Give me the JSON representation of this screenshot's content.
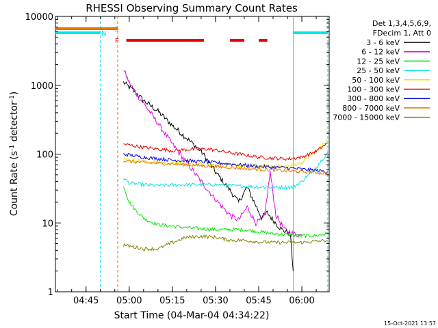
{
  "chart_data": {
    "type": "line",
    "title": "RHESSI Observing Summary Count Rates",
    "xlabel": "Start Time (04-Mar-04 04:34:22)",
    "ylabel_main": "Count Rate (s",
    "ylabel_sup1": "-1",
    "ylabel_mid": " detector",
    "ylabel_sup2": "-1",
    "ylabel_end": ")",
    "y_scale": "log",
    "ylim": [
      1,
      10000
    ],
    "xlim": [
      "04:34:22",
      "06:09:30"
    ],
    "x_ticks": [
      "04:45",
      "05:00",
      "05:15",
      "05:30",
      "05:45",
      "06:00"
    ],
    "y_ticks": [
      "1",
      "10",
      "100",
      "1000",
      "10000"
    ],
    "legend_placement": "right",
    "legend_header": [
      "Det 1,3,4,5,6,9,",
      "FDecim 1, Att 0"
    ],
    "timestamp": "15-Oct-2021 13:57",
    "flags": {
      "S": {
        "label": "S",
        "color": "#e67300",
        "intervals": [
          [
            "04:34",
            "04:56"
          ]
        ]
      },
      "N": {
        "label": "N",
        "color": "#00e5e5",
        "intervals": [
          [
            "04:34",
            "04:50"
          ],
          [
            "05:57",
            "06:09"
          ]
        ]
      },
      "F": {
        "label": "F",
        "color": "#e60000",
        "intervals": [
          [
            "04:59",
            "05:26"
          ],
          [
            "05:35",
            "05:40"
          ],
          [
            "05:45",
            "05:48"
          ]
        ]
      }
    },
    "markers": [
      {
        "time": "04:50",
        "color": "#00e5e5",
        "style": "dashed"
      },
      {
        "time": "04:56",
        "color": "#e67300",
        "style": "dashed"
      },
      {
        "time": "05:57",
        "color": "#00e5e5",
        "style": "solid"
      },
      {
        "time": "06:09",
        "color": "#00e5e5",
        "style": "dashed"
      }
    ],
    "series": [
      {
        "name": "3 - 6 keV",
        "color": "#000000",
        "points": [
          [
            "04:58",
            1100
          ],
          [
            "05:02",
            800
          ],
          [
            "05:05",
            600
          ],
          [
            "05:10",
            420
          ],
          [
            "05:15",
            260
          ],
          [
            "05:20",
            170
          ],
          [
            "05:25",
            110
          ],
          [
            "05:30",
            55
          ],
          [
            "05:35",
            30
          ],
          [
            "05:38",
            20
          ],
          [
            "05:41",
            33
          ],
          [
            "05:43",
            22
          ],
          [
            "05:46",
            12
          ],
          [
            "05:48",
            14
          ],
          [
            "05:50",
            11
          ],
          [
            "05:53",
            8
          ],
          [
            "05:56",
            7
          ],
          [
            "05:57",
            2
          ]
        ]
      },
      {
        "name": "6 - 12 keV",
        "color": "#e600e6",
        "points": [
          [
            "04:58",
            1700
          ],
          [
            "05:00",
            1100
          ],
          [
            "05:03",
            700
          ],
          [
            "05:06",
            480
          ],
          [
            "05:10",
            280
          ],
          [
            "05:15",
            140
          ],
          [
            "05:20",
            75
          ],
          [
            "05:25",
            40
          ],
          [
            "05:30",
            22
          ],
          [
            "05:35",
            13
          ],
          [
            "05:38",
            11
          ],
          [
            "05:41",
            17
          ],
          [
            "05:44",
            10
          ],
          [
            "05:47",
            12
          ],
          [
            "05:49",
            55
          ],
          [
            "05:51",
            13
          ],
          [
            "05:54",
            8
          ],
          [
            "05:57",
            7
          ],
          [
            "06:00",
            6.5
          ]
        ]
      },
      {
        "name": "12 - 25 keV",
        "color": "#00e600",
        "points": [
          [
            "04:58",
            35
          ],
          [
            "05:00",
            20
          ],
          [
            "05:03",
            14
          ],
          [
            "05:06",
            11
          ],
          [
            "05:10",
            9.5
          ],
          [
            "05:20",
            8.5
          ],
          [
            "05:30",
            8
          ],
          [
            "05:40",
            8
          ],
          [
            "05:50",
            7
          ],
          [
            "06:00",
            6.5
          ],
          [
            "06:05",
            6.5
          ],
          [
            "06:09",
            7
          ]
        ]
      },
      {
        "name": "25 - 50 keV",
        "color": "#00e5e5",
        "points": [
          [
            "04:58",
            45
          ],
          [
            "05:00",
            38
          ],
          [
            "05:05",
            36
          ],
          [
            "05:10",
            35
          ],
          [
            "05:20",
            36
          ],
          [
            "05:30",
            36
          ],
          [
            "05:40",
            34
          ],
          [
            "05:50",
            33
          ],
          [
            "05:57",
            33
          ],
          [
            "06:00",
            40
          ],
          [
            "06:05",
            65
          ],
          [
            "06:09",
            105
          ]
        ]
      },
      {
        "name": "50 - 100 keV",
        "color": "#e6e600",
        "points": [
          [
            "04:58",
            85
          ],
          [
            "05:05",
            78
          ],
          [
            "05:15",
            74
          ],
          [
            "05:25",
            72
          ],
          [
            "05:35",
            68
          ],
          [
            "05:45",
            68
          ],
          [
            "05:55",
            66
          ],
          [
            "06:00",
            75
          ],
          [
            "06:05",
            110
          ],
          [
            "06:09",
            160
          ]
        ]
      },
      {
        "name": "100 - 300 keV",
        "color": "#e60000",
        "points": [
          [
            "04:58",
            140
          ],
          [
            "05:05",
            125
          ],
          [
            "05:15",
            112
          ],
          [
            "05:22",
            118
          ],
          [
            "05:28",
            118
          ],
          [
            "05:35",
            105
          ],
          [
            "05:45",
            90
          ],
          [
            "05:55",
            85
          ],
          [
            "06:00",
            90
          ],
          [
            "06:05",
            110
          ],
          [
            "06:09",
            145
          ]
        ]
      },
      {
        "name": "300 - 800 keV",
        "color": "#0000e6",
        "points": [
          [
            "04:58",
            100
          ],
          [
            "05:05",
            90
          ],
          [
            "05:15",
            82
          ],
          [
            "05:25",
            78
          ],
          [
            "05:35",
            72
          ],
          [
            "05:45",
            66
          ],
          [
            "05:55",
            63
          ],
          [
            "06:05",
            58
          ],
          [
            "06:09",
            55
          ]
        ]
      },
      {
        "name": "800 - 7000 keV",
        "color": "#e67300",
        "points": [
          [
            "04:58",
            80
          ],
          [
            "05:05",
            75
          ],
          [
            "05:15",
            72
          ],
          [
            "05:25",
            68
          ],
          [
            "05:35",
            64
          ],
          [
            "05:45",
            60
          ],
          [
            "05:55",
            57
          ],
          [
            "06:05",
            54
          ],
          [
            "06:09",
            52
          ]
        ]
      },
      {
        "name": "7000 - 15000 keV",
        "color": "#808000",
        "points": [
          [
            "04:58",
            4.8
          ],
          [
            "05:05",
            4.2
          ],
          [
            "05:10",
            4.2
          ],
          [
            "05:15",
            5.2
          ],
          [
            "05:20",
            6.2
          ],
          [
            "05:25",
            6.4
          ],
          [
            "05:30",
            6.2
          ],
          [
            "05:35",
            5.6
          ],
          [
            "05:40",
            5.6
          ],
          [
            "05:45",
            5.3
          ],
          [
            "05:50",
            5.2
          ],
          [
            "05:55",
            5.2
          ],
          [
            "06:00",
            5.2
          ],
          [
            "06:05",
            5.4
          ],
          [
            "06:09",
            5.6
          ]
        ]
      }
    ]
  }
}
